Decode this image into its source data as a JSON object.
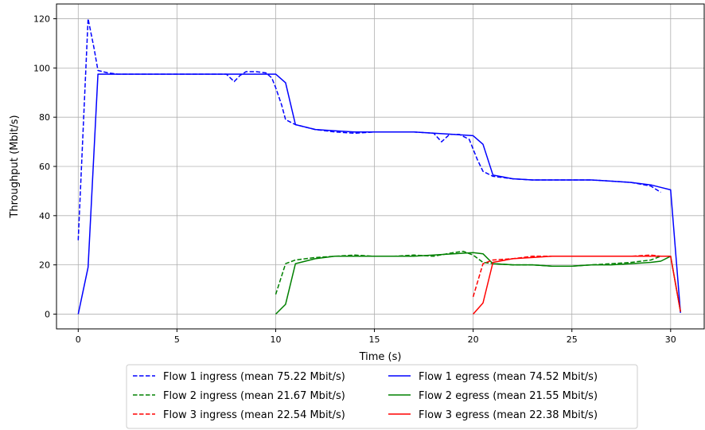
{
  "chart_data": {
    "type": "line",
    "xlabel": "Time (s)",
    "ylabel": "Throughput (Mbit/s)",
    "xlim": [
      -1.1,
      31.7
    ],
    "ylim": [
      -6,
      126
    ],
    "xticks": [
      0,
      5,
      10,
      15,
      20,
      25,
      30
    ],
    "yticks": [
      0,
      20,
      40,
      60,
      80,
      100,
      120
    ],
    "grid": true,
    "legend_position": "below",
    "series": [
      {
        "name": "Flow 1 ingress (mean 75.22 Mbit/s)",
        "color": "#0000ff",
        "style": "dashed",
        "x": [
          0,
          0.5,
          0.8,
          1.0,
          1.5,
          2,
          3,
          4,
          5,
          6,
          7,
          7.5,
          7.9,
          8.2,
          8.5,
          9,
          9.5,
          9.8,
          10,
          10.3,
          10.5,
          11,
          12,
          13,
          14,
          15,
          16,
          17,
          18,
          18.4,
          18.8,
          19.3,
          19.8,
          20.2,
          20.5,
          21,
          22,
          23,
          24,
          25,
          26,
          27,
          28,
          29,
          29.5
        ],
        "y": [
          30,
          120,
          108,
          99,
          98,
          97.5,
          97.5,
          97.5,
          97.5,
          97.5,
          97.5,
          97.5,
          94.5,
          97,
          98.5,
          98.5,
          98,
          96,
          92,
          85,
          79,
          77,
          75,
          74,
          73.5,
          74,
          74,
          74,
          73.5,
          70,
          73,
          73,
          71,
          63,
          58,
          56,
          55,
          54.5,
          54.5,
          54.5,
          54.5,
          54,
          53.5,
          52,
          49.5
        ]
      },
      {
        "name": "Flow 1 egress (mean 74.52 Mbit/s)",
        "color": "#0000ff",
        "style": "solid",
        "x": [
          0,
          0.5,
          1.0,
          2,
          3,
          4,
          5,
          6,
          7,
          8,
          9,
          9.5,
          10,
          10.5,
          11,
          12,
          13,
          14,
          15,
          16,
          17,
          18,
          19,
          20,
          20.5,
          21,
          22,
          23,
          24,
          25,
          26,
          27,
          28,
          29,
          29.5,
          30,
          30.5
        ],
        "y": [
          0,
          19,
          97.5,
          97.5,
          97.5,
          97.5,
          97.5,
          97.5,
          97.5,
          97.5,
          97.5,
          97.5,
          97.5,
          94,
          77,
          75,
          74.5,
          74,
          74,
          74,
          74,
          73.5,
          73,
          72.5,
          69,
          56.5,
          55,
          54.5,
          54.5,
          54.5,
          54.5,
          54,
          53.5,
          52.5,
          51.5,
          50.5,
          0.5
        ]
      },
      {
        "name": "Flow 2 ingress (mean 21.67 Mbit/s)",
        "color": "#008000",
        "style": "dashed",
        "x": [
          10,
          10.5,
          11,
          12,
          13,
          14,
          15,
          16,
          17,
          18,
          19,
          19.5,
          20,
          20.5,
          21,
          22,
          23,
          24,
          25,
          26,
          27,
          28,
          29,
          29.5
        ],
        "y": [
          8,
          20.5,
          22,
          23,
          23.5,
          24,
          23.5,
          23.5,
          24,
          23.5,
          25,
          25.5,
          24,
          21,
          20.5,
          20,
          20,
          19.5,
          19.5,
          20,
          20.5,
          21,
          22,
          23.5
        ]
      },
      {
        "name": "Flow 2 egress (mean 21.55 Mbit/s)",
        "color": "#008000",
        "style": "solid",
        "x": [
          10,
          10.5,
          11,
          12,
          13,
          14,
          15,
          16,
          17,
          18,
          19,
          20,
          20.5,
          21,
          22,
          23,
          24,
          25,
          26,
          27,
          28,
          29,
          29.5,
          30,
          30.5
        ],
        "y": [
          0,
          4,
          20.5,
          22.5,
          23.5,
          23.5,
          23.5,
          23.5,
          23.5,
          24,
          24.5,
          25,
          24.5,
          20.5,
          20,
          20,
          19.5,
          19.5,
          20,
          20,
          20.5,
          21,
          21.5,
          23.5,
          1
        ]
      },
      {
        "name": "Flow 3 ingress (mean 22.54 Mbit/s)",
        "color": "#ff0000",
        "style": "dashed",
        "x": [
          20,
          20.5,
          21,
          22,
          23,
          24,
          25,
          26,
          27,
          28,
          29,
          29.5
        ],
        "y": [
          7,
          20.5,
          22,
          22.5,
          23.5,
          23.5,
          23.5,
          23.5,
          23.5,
          23.5,
          24,
          23.5
        ]
      },
      {
        "name": "Flow 3 egress (mean 22.38 Mbit/s)",
        "color": "#ff0000",
        "style": "solid",
        "x": [
          20,
          20.5,
          21,
          22,
          23,
          24,
          25,
          26,
          27,
          28,
          29,
          30,
          30.5
        ],
        "y": [
          0,
          4.5,
          21,
          22.5,
          23,
          23.5,
          23.5,
          23.5,
          23.5,
          23.5,
          23.5,
          23.5,
          1
        ]
      }
    ],
    "legend_order": [
      0,
      2,
      4,
      1,
      3,
      5
    ]
  }
}
